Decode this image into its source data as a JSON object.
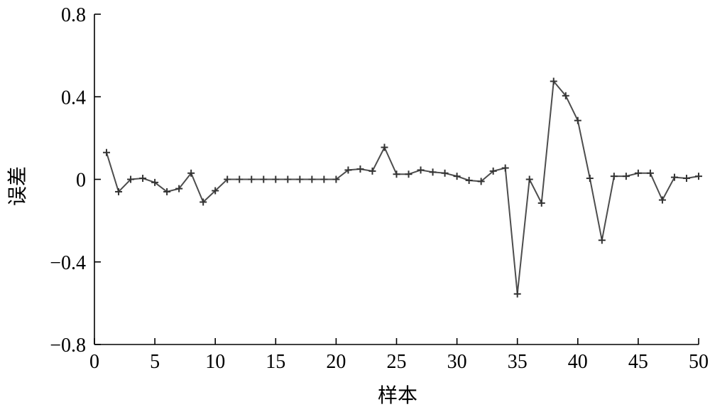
{
  "chart_data": {
    "type": "line",
    "title": "",
    "xlabel": "样本",
    "ylabel": "误差",
    "xlim": [
      0,
      50
    ],
    "ylim": [
      -0.8,
      0.8
    ],
    "xticks": [
      0,
      5,
      10,
      15,
      20,
      25,
      30,
      35,
      40,
      45,
      50
    ],
    "xtick_labels": [
      "0",
      "5",
      "10",
      "15",
      "20",
      "25",
      "30",
      "35",
      "40",
      "45",
      "50"
    ],
    "yticks": [
      0.8,
      0.4,
      0,
      -0.4,
      -0.8
    ],
    "ytick_labels": [
      "0.8",
      "0.4",
      "0",
      "−0.4",
      "−0.8"
    ],
    "grid": false,
    "legend": "none",
    "marker": "plus",
    "line_color": "#4d4d4d",
    "marker_color": "#333333",
    "series": [
      {
        "x": [
          1,
          2,
          3,
          4,
          5,
          6,
          7,
          8,
          9,
          10,
          11,
          12,
          13,
          14,
          15,
          16,
          17,
          18,
          19,
          20,
          21,
          22,
          23,
          24,
          25,
          26,
          27,
          28,
          29,
          30,
          31,
          32,
          33,
          34,
          35,
          36,
          37,
          38,
          39,
          40,
          41,
          42,
          43,
          44,
          45,
          46,
          47,
          48,
          49,
          50
        ],
        "values": [
          0.13,
          -0.06,
          0.0,
          0.005,
          -0.015,
          -0.06,
          -0.045,
          0.03,
          -0.11,
          -0.055,
          0.0,
          0.0,
          0.0,
          0.0,
          0.0,
          0.0,
          0.0,
          0.0,
          0.0,
          0.0,
          0.045,
          0.05,
          0.04,
          0.155,
          0.025,
          0.025,
          0.045,
          0.035,
          0.03,
          0.015,
          -0.005,
          -0.01,
          0.04,
          0.055,
          -0.555,
          0.0,
          -0.115,
          0.475,
          0.405,
          0.285,
          0.005,
          -0.295,
          0.015,
          0.015,
          0.03,
          0.03,
          -0.1,
          0.01,
          0.005,
          0.015
        ]
      }
    ]
  }
}
